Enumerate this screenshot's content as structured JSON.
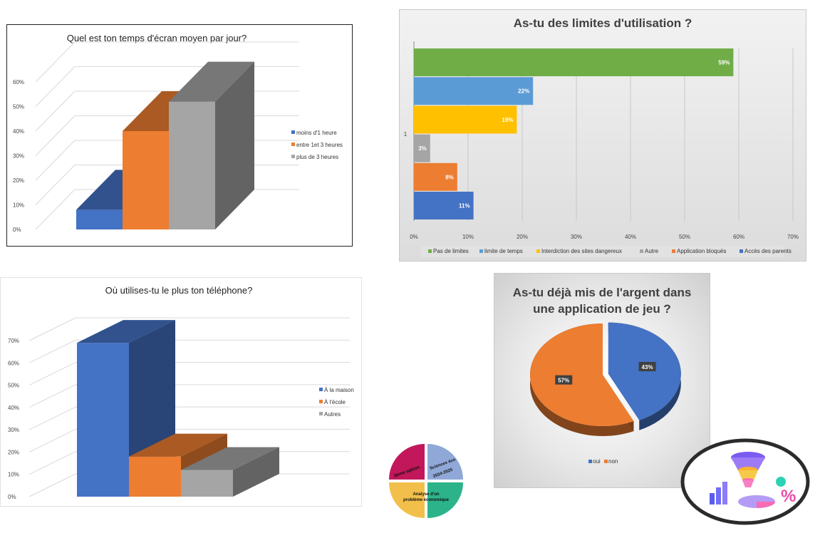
{
  "chart_data": [
    {
      "type": "bar",
      "title": "Quel est ton temps d'écran moyen par jour?",
      "y_ticks": [
        "0%",
        "10%",
        "20%",
        "30%",
        "40%",
        "50%",
        "60%"
      ],
      "ylim": [
        0,
        60
      ],
      "series": [
        {
          "name": "moins d'1 heure",
          "values": [
            8
          ],
          "color": "#4472c4"
        },
        {
          "name": "entre 1et 3 heures",
          "values": [
            40
          ],
          "color": "#ed7d31"
        },
        {
          "name": "plus de 3 heures",
          "values": [
            52
          ],
          "color": "#a5a5a5"
        }
      ],
      "legend_position": "right"
    },
    {
      "type": "bar",
      "orientation": "horizontal",
      "title": "As-tu des limites d'utilisation ?",
      "category_label": "1",
      "x_ticks": [
        "0%",
        "10%",
        "20%",
        "30%",
        "40%",
        "50%",
        "60%",
        "70%"
      ],
      "xlim": [
        0,
        70
      ],
      "series": [
        {
          "name": "Pas de limites",
          "value": 59,
          "label": "59%",
          "color": "#70ad47"
        },
        {
          "name": "limite de temps",
          "value": 22,
          "label": "22%",
          "color": "#5b9bd5"
        },
        {
          "name": "Interdiction des sites dangereux",
          "value": 19,
          "label": "19%",
          "color": "#ffc000"
        },
        {
          "name": "Autre",
          "value": 3,
          "label": "3%",
          "color": "#a5a5a5"
        },
        {
          "name": "Application bloqués",
          "value": 8,
          "label": "8%",
          "color": "#ed7d31"
        },
        {
          "name": "Accès des parents",
          "value": 11,
          "label": "11%",
          "color": "#4472c4"
        }
      ],
      "legend_position": "bottom"
    },
    {
      "type": "bar",
      "title": "Où utilises-tu le plus ton téléphone?",
      "y_ticks": [
        "0%",
        "10%",
        "20%",
        "30%",
        "40%",
        "50%",
        "60%",
        "70%"
      ],
      "ylim": [
        0,
        70
      ],
      "series": [
        {
          "name": "À la maison",
          "values": [
            69
          ],
          "color": "#4472c4"
        },
        {
          "name": "À l'école",
          "values": [
            18
          ],
          "color": "#ed7d31"
        },
        {
          "name": "Autres",
          "values": [
            12
          ],
          "color": "#a5a5a5"
        }
      ],
      "legend_position": "right"
    },
    {
      "type": "pie",
      "title": "As-tu déjà mis de l'argent dans une application de jeu ?",
      "title_lines": [
        "As-tu déjà mis de l'argent dans",
        "une application de jeu ?"
      ],
      "slices": [
        {
          "name": "oui",
          "value": 43,
          "label": "43%",
          "color": "#4472c4"
        },
        {
          "name": "non",
          "value": 57,
          "label": "57%",
          "color": "#ed7d31"
        }
      ],
      "legend_position": "bottom"
    }
  ],
  "logo": {
    "texts": [
      "3ème option",
      "2024-2025",
      "Sciences éco",
      "Analyse d'un",
      "problème économique"
    ],
    "colors": [
      "#c2185b",
      "#8fa8d8",
      "#f2c04a",
      "#2db38a"
    ]
  },
  "badge": {
    "symbol": "%"
  }
}
